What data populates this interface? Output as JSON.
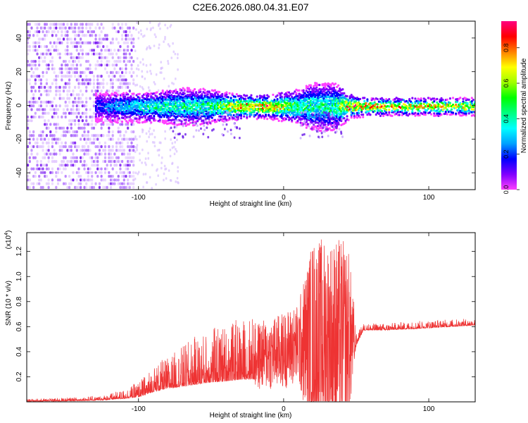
{
  "title": "C2E6.2026.080.04.31.E07",
  "chart_data": [
    {
      "type": "heatmap",
      "xlabel": "Height of straight line (km)",
      "ylabel": "Frequency (Hz)",
      "xlim": [
        -177,
        132
      ],
      "ylim": [
        -50,
        50
      ],
      "xticks": [
        -100,
        0,
        100
      ],
      "xtick_labels": [
        "-100",
        "0",
        "100"
      ],
      "yticks": [
        -40,
        -20,
        0,
        20,
        40
      ],
      "ytick_labels": [
        "-40",
        "-20",
        "0",
        "20",
        "40"
      ],
      "colorbar": {
        "label": "Normalized spectral amplitude",
        "range": [
          0,
          0.95
        ],
        "ticks": [
          0.0,
          0.2,
          0.4,
          0.6,
          0.8
        ],
        "tick_labels": [
          "0.0",
          "0.2",
          "0.4",
          "0.6",
          "0.8"
        ],
        "colors": [
          "#ff40ff",
          "#8000ff",
          "#0000ff",
          "#00a0ff",
          "#00ffff",
          "#00ff80",
          "#00ff00",
          "#a0ff00",
          "#ffff00",
          "#ff8000",
          "#ff0000",
          "#ff0080"
        ]
      },
      "ridge": [
        {
          "x": -130,
          "amp": 0.2,
          "spread": 5
        },
        {
          "x": -110,
          "amp": 0.35,
          "spread": 5
        },
        {
          "x": -90,
          "amp": 0.45,
          "spread": 5
        },
        {
          "x": -70,
          "amp": 0.45,
          "spread": 7
        },
        {
          "x": -50,
          "amp": 0.5,
          "spread": 6
        },
        {
          "x": -30,
          "amp": 0.85,
          "spread": 3
        },
        {
          "x": -10,
          "amp": 0.85,
          "spread": 3
        },
        {
          "x": 10,
          "amp": 0.5,
          "spread": 6
        },
        {
          "x": 20,
          "amp": 0.45,
          "spread": 10
        },
        {
          "x": 35,
          "amp": 0.5,
          "spread": 10
        },
        {
          "x": 45,
          "amp": 0.85,
          "spread": 3
        },
        {
          "x": 60,
          "amp": 0.85,
          "spread": 1
        },
        {
          "x": 100,
          "amp": 0.8,
          "spread": 1
        },
        {
          "x": 132,
          "amp": 0.75,
          "spread": 1
        }
      ],
      "noise_region": {
        "x_from": -177,
        "x_to": -103,
        "amp": 0.15
      }
    },
    {
      "type": "line",
      "xlabel": "Height of straight line (km)",
      "ylabel": "SNR (10 * v/v)",
      "yscale_label": "(x10",
      "yscale_exponent": "4",
      "yscale_suffix": ")",
      "xlim": [
        -177,
        132
      ],
      "ylim": [
        0,
        13500
      ],
      "xticks": [
        -100,
        0,
        100
      ],
      "xtick_labels": [
        "-100",
        "0",
        "100"
      ],
      "yticks": [
        2000,
        4000,
        6000,
        8000,
        10000,
        12000
      ],
      "ytick_labels": [
        "0.2",
        "0.4",
        "0.6",
        "0.8",
        "1.0",
        "1.2"
      ],
      "color": "#ee3333",
      "series": [
        {
          "name": "SNR",
          "x": [
            -177,
            -150,
            -125,
            -110,
            -100,
            -95,
            -90,
            -80,
            -70,
            -60,
            -50,
            -40,
            -30,
            -20,
            -10,
            0,
            10,
            20,
            30,
            40,
            45,
            50,
            55,
            70,
            100,
            132
          ],
          "y": [
            100,
            150,
            250,
            500,
            800,
            1100,
            1500,
            1900,
            2300,
            2700,
            3000,
            3200,
            3400,
            3600,
            3800,
            4100,
            4600,
            5000,
            5000,
            5000,
            5000,
            4800,
            5900,
            5900,
            6100,
            6300
          ],
          "amp": [
            100,
            150,
            200,
            400,
            700,
            900,
            1200,
            1400,
            1800,
            2200,
            2400,
            2600,
            2700,
            3000,
            3200,
            3400,
            3600,
            9000,
            9000,
            9000,
            8000,
            500,
            300,
            300,
            350,
            300
          ]
        }
      ]
    }
  ]
}
